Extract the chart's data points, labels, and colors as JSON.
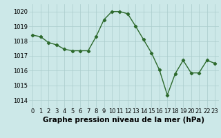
{
  "x": [
    0,
    1,
    2,
    3,
    4,
    5,
    6,
    7,
    8,
    9,
    10,
    11,
    12,
    13,
    14,
    15,
    16,
    17,
    18,
    19,
    20,
    21,
    22,
    23
  ],
  "y": [
    1018.4,
    1018.3,
    1017.9,
    1017.75,
    1017.45,
    1017.35,
    1017.35,
    1017.35,
    1018.3,
    1019.45,
    1020.0,
    1020.0,
    1019.85,
    1019.0,
    1018.1,
    1017.2,
    1016.05,
    1014.35,
    1015.8,
    1016.7,
    1015.85,
    1015.85,
    1016.7,
    1016.5
  ],
  "line_color": "#2d6a2d",
  "marker": "D",
  "marker_size": 2.2,
  "bg_color": "#cce8e8",
  "grid_color": "#aacccc",
  "xlabel": "Graphe pression niveau de la mer (hPa)",
  "xlabel_fontsize": 7.5,
  "ylim": [
    1013.5,
    1020.5
  ],
  "yticks": [
    1014,
    1015,
    1016,
    1017,
    1018,
    1019,
    1020
  ],
  "xticks": [
    0,
    1,
    2,
    3,
    4,
    5,
    6,
    7,
    8,
    9,
    10,
    11,
    12,
    13,
    14,
    15,
    16,
    17,
    18,
    19,
    20,
    21,
    22,
    23
  ],
  "tick_fontsize": 6,
  "line_width": 1.0
}
